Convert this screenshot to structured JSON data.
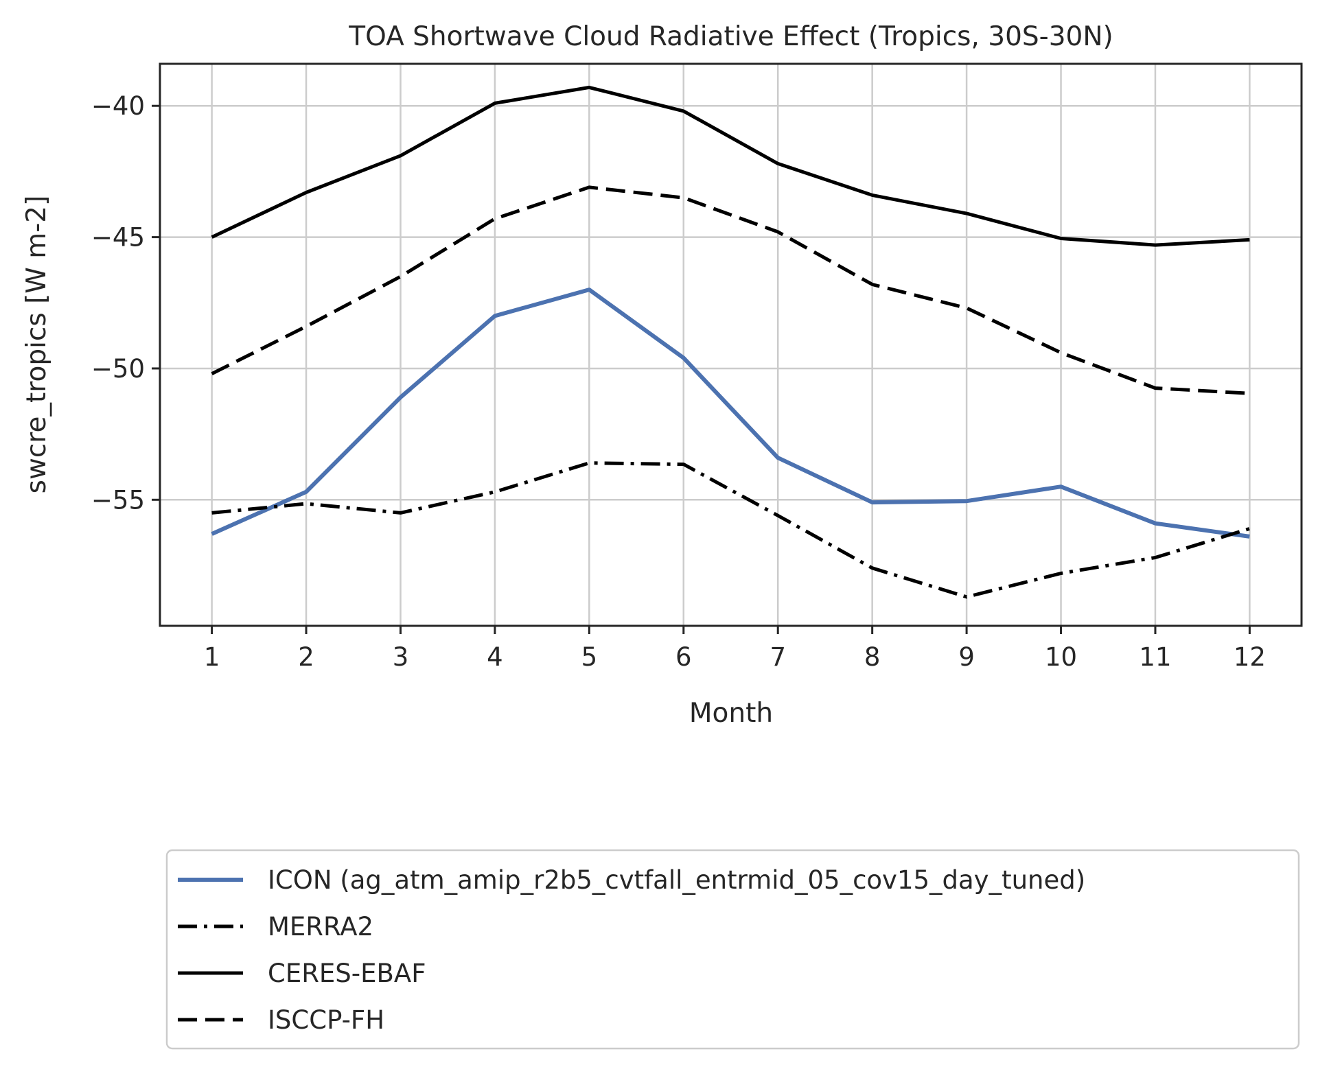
{
  "chart_data": {
    "type": "line",
    "title": "TOA Shortwave Cloud Radiative Effect (Tropics, 30S-30N)",
    "xlabel": "Month",
    "ylabel": "swcre_tropics [W m-2]",
    "x": [
      1,
      2,
      3,
      4,
      5,
      6,
      7,
      8,
      9,
      10,
      11,
      12
    ],
    "xlim": [
      0.45,
      12.55
    ],
    "ylim": [
      -59.8,
      -38.4
    ],
    "xticks": [
      1,
      2,
      3,
      4,
      5,
      6,
      7,
      8,
      9,
      10,
      11,
      12
    ],
    "yticks": [
      -55,
      -50,
      -45,
      -40
    ],
    "ytick_labels": [
      "−55",
      "−50",
      "−45",
      "−40"
    ],
    "grid": true,
    "legend_placement": "below",
    "series": [
      {
        "name": "ICON (ag_atm_amip_r2b5_cvtfall_entrmid_05_cov15_day_tuned)",
        "color": "#4c72b0",
        "style": "solid",
        "values": [
          -56.3,
          -54.7,
          -51.1,
          -48.0,
          -47.0,
          -49.6,
          -53.4,
          -55.1,
          -55.05,
          -54.5,
          -55.9,
          -56.4
        ]
      },
      {
        "name": "MERRA2",
        "color": "#000000",
        "style": "dashdot",
        "values": [
          -55.5,
          -55.15,
          -55.5,
          -54.7,
          -53.6,
          -53.65,
          -55.6,
          -57.6,
          -58.7,
          -57.8,
          -57.2,
          -56.1
        ]
      },
      {
        "name": "CERES-EBAF",
        "color": "#000000",
        "style": "solid",
        "values": [
          -45.0,
          -43.3,
          -41.9,
          -39.9,
          -39.3,
          -40.2,
          -42.2,
          -43.4,
          -44.1,
          -45.05,
          -45.3,
          -45.1
        ]
      },
      {
        "name": "ISCCP-FH",
        "color": "#000000",
        "style": "dashed",
        "values": [
          -50.2,
          -48.4,
          -46.5,
          -44.3,
          -43.1,
          -43.5,
          -44.8,
          -46.8,
          -47.7,
          -49.4,
          -50.75,
          -50.95
        ]
      }
    ]
  }
}
